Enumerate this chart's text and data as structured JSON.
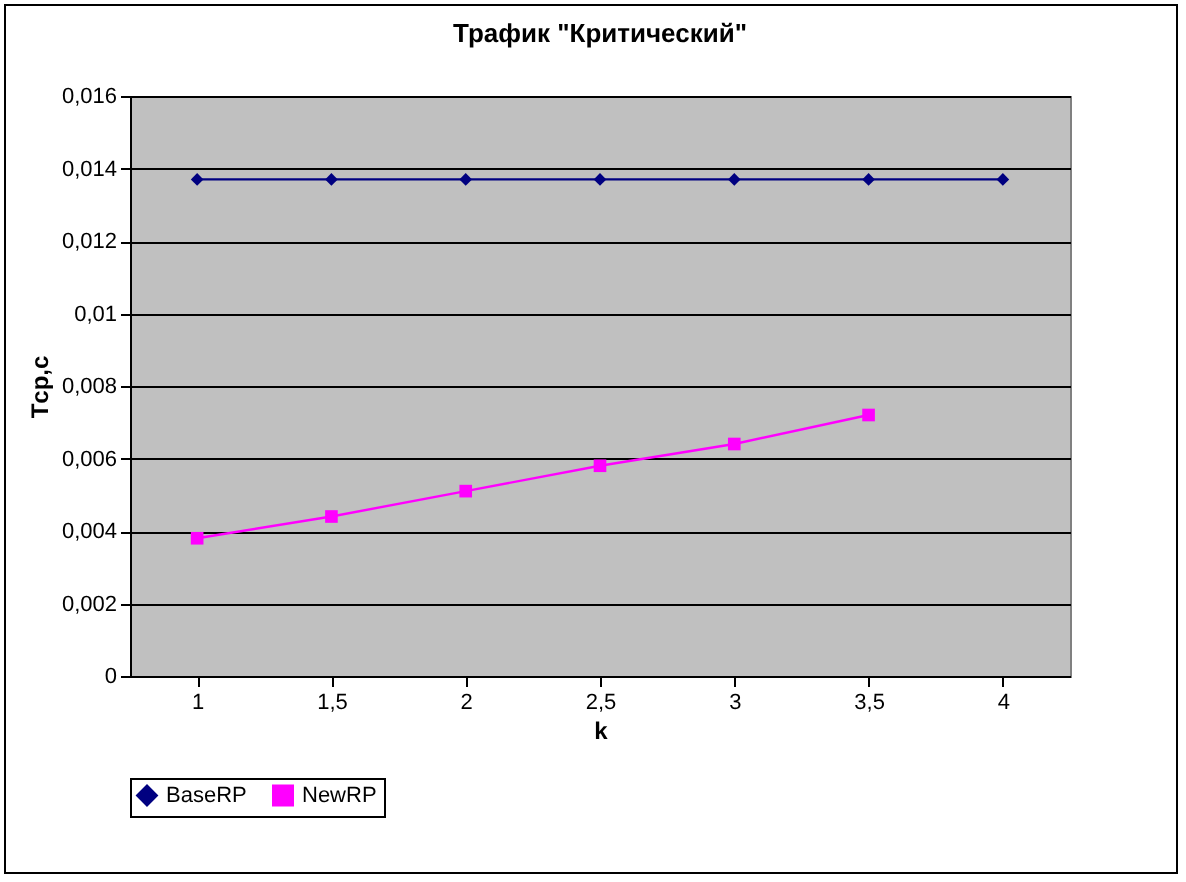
{
  "chart_data": {
    "type": "line",
    "title": "Трафик \"Критический\"",
    "xlabel": "k",
    "ylabel": "Tср,c",
    "categories": [
      "1",
      "1,5",
      "2",
      "2,5",
      "3",
      "3,5",
      "4"
    ],
    "series": [
      {
        "name": "BaseRP",
        "color": "#000080",
        "marker": "diamond",
        "values": [
          0.0137,
          0.0137,
          0.0137,
          0.0137,
          0.0137,
          0.0137,
          0.0137
        ]
      },
      {
        "name": "NewRP",
        "color": "#ff00ff",
        "marker": "square",
        "values": [
          0.0038,
          0.0044,
          0.0051,
          0.0058,
          0.0064,
          0.0072,
          null
        ]
      }
    ],
    "ylim": [
      0,
      0.016
    ],
    "yticks": [
      {
        "value": 0,
        "label": "0"
      },
      {
        "value": 0.002,
        "label": "0,002"
      },
      {
        "value": 0.004,
        "label": "0,004"
      },
      {
        "value": 0.006,
        "label": "0,006"
      },
      {
        "value": 0.008,
        "label": "0,008"
      },
      {
        "value": 0.01,
        "label": "0,01"
      },
      {
        "value": 0.012,
        "label": "0,012"
      },
      {
        "value": 0.014,
        "label": "0,014"
      },
      {
        "value": 0.016,
        "label": "0,016"
      }
    ],
    "grid": "y",
    "legend": "bottom",
    "line_style": "solid"
  }
}
